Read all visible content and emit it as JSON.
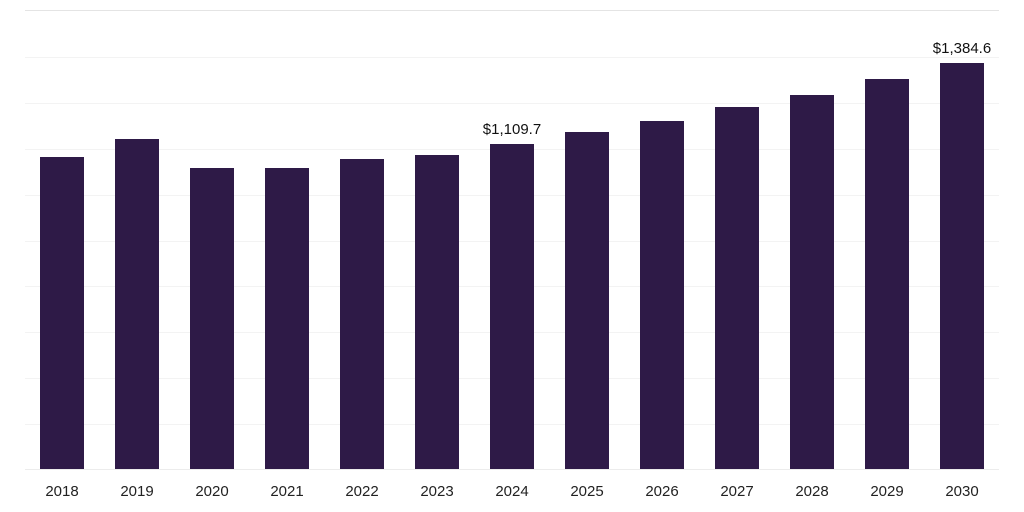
{
  "chart": {
    "bar_color": "#2E1A47",
    "grid_color": "#f3f3f3",
    "axis_line_color": "#e4e4e4",
    "value_label_color": "#111111",
    "tick_label_color": "#222222"
  },
  "chart_data": {
    "type": "bar",
    "title": "",
    "xlabel": "",
    "ylabel": "",
    "categories": [
      "2018",
      "2019",
      "2020",
      "2021",
      "2022",
      "2023",
      "2024",
      "2025",
      "2026",
      "2027",
      "2028",
      "2029",
      "2030"
    ],
    "values": [
      1065,
      1125,
      1028,
      1025,
      1058,
      1072,
      1109.7,
      1150,
      1187,
      1234,
      1276,
      1330,
      1384.6
    ],
    "data_labels": [
      "",
      "",
      "",
      "",
      "",
      "",
      "$1,109.7",
      "",
      "",
      "",
      "",
      "",
      "$1,384.6"
    ],
    "ylim": [
      0,
      1560
    ],
    "grid": true,
    "gridline_count": 10,
    "legend": false
  }
}
